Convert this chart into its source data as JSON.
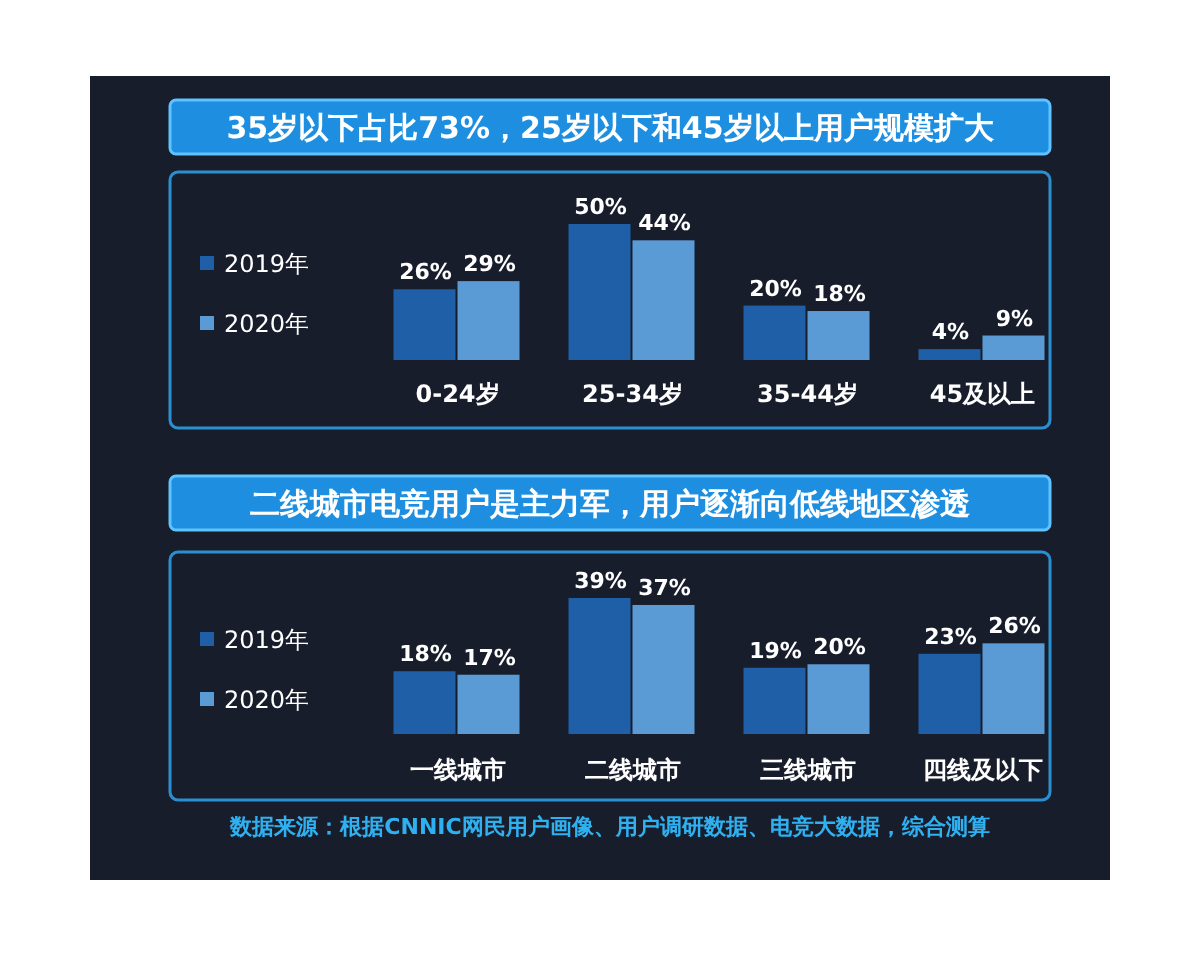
{
  "chart_data": [
    {
      "type": "bar",
      "title": "35岁以下占比73%，25岁以下和45岁以上用户规模扩大",
      "categories": [
        "0-24岁",
        "25-34岁",
        "35-44岁",
        "45及以上"
      ],
      "series": [
        {
          "name": "2019年",
          "color": "#1f5fa8",
          "values": [
            26,
            50,
            20,
            4
          ],
          "value_labels": [
            "26%",
            "50%",
            "20%",
            "4%"
          ]
        },
        {
          "name": "2020年",
          "color": "#5b9bd5",
          "values": [
            29,
            44,
            18,
            9
          ],
          "value_labels": [
            "29%",
            "44%",
            "18%",
            "9%"
          ]
        }
      ],
      "legend": "left"
    },
    {
      "type": "bar",
      "title": "二线城市电竞用户是主力军，用户逐渐向低线地区渗透",
      "categories": [
        "一线城市",
        "二线城市",
        "三线城市",
        "四线及以下"
      ],
      "series": [
        {
          "name": "2019年",
          "color": "#1f5fa8",
          "values": [
            18,
            39,
            19,
            23
          ],
          "value_labels": [
            "18%",
            "39%",
            "19%",
            "23%"
          ]
        },
        {
          "name": "2020年",
          "color": "#5b9bd5",
          "values": [
            17,
            37,
            20,
            26
          ],
          "value_labels": [
            "17%",
            "37%",
            "20%",
            "26%"
          ]
        }
      ],
      "legend": "left",
      "annotations": [
        "数据来源：根据CNNIC网民用户画像、用户调研数据、电竞大数据，综合测算"
      ]
    }
  ]
}
